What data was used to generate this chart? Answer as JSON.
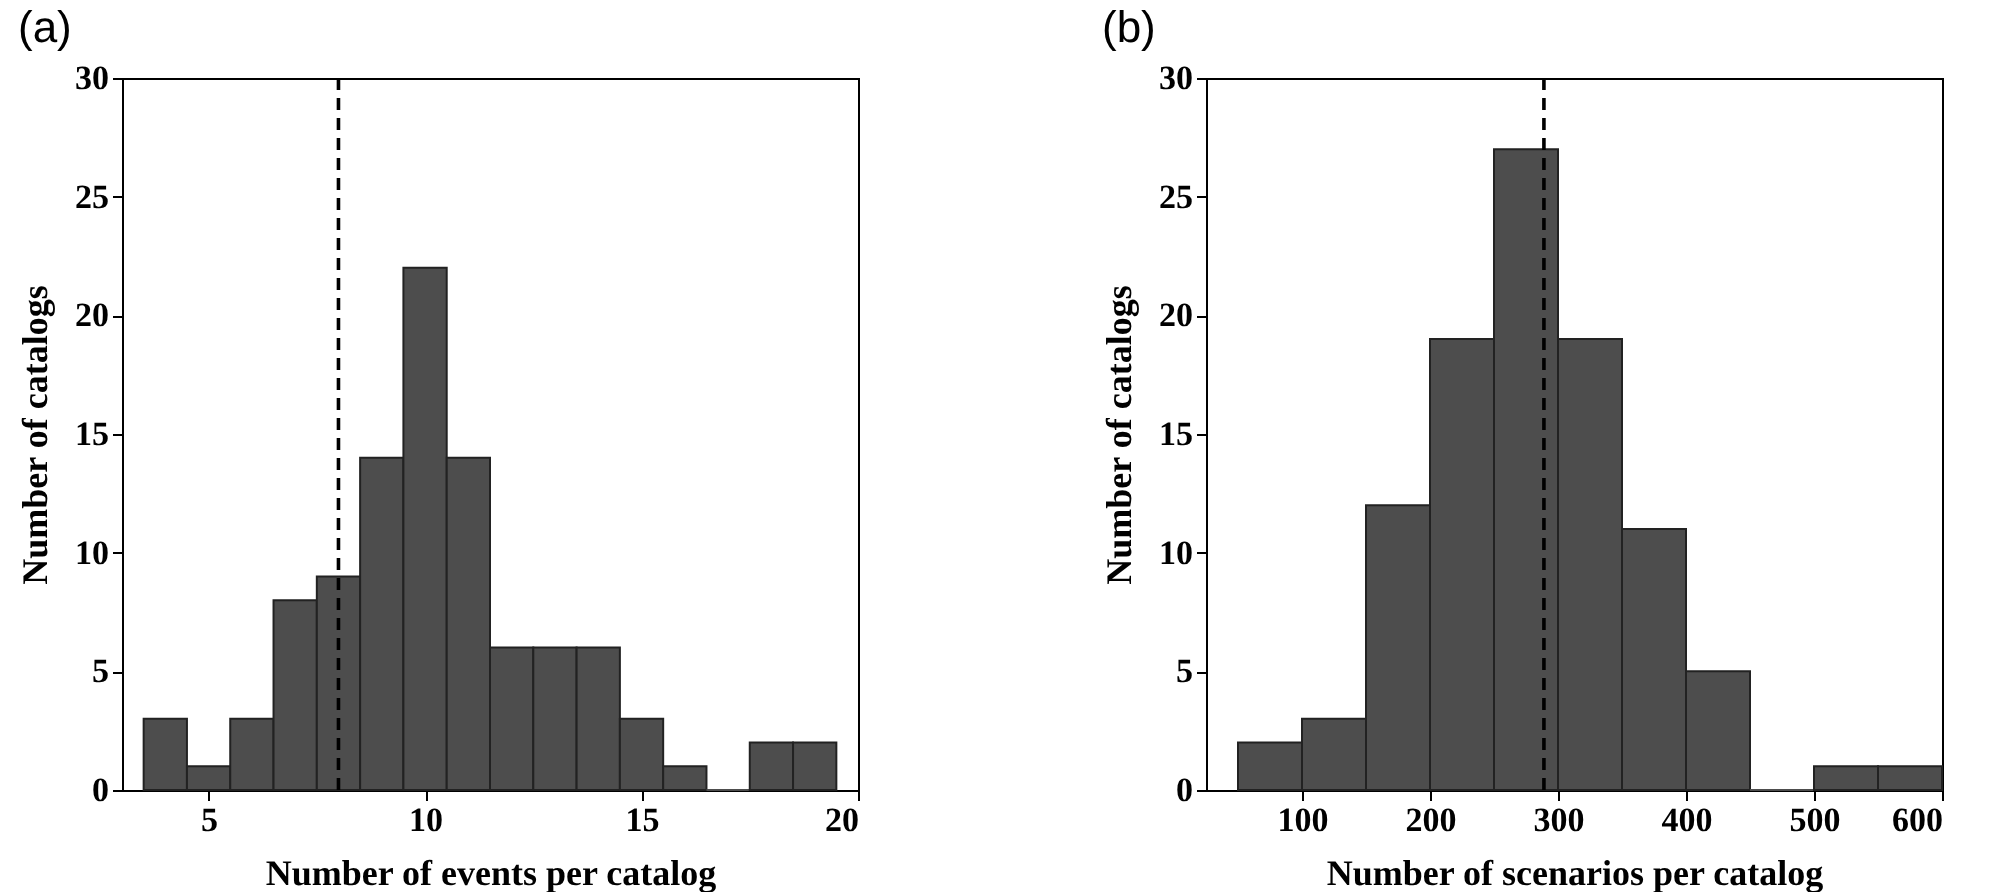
{
  "chart_data": [
    {
      "type": "histogram",
      "title": "(a)",
      "xlabel": "Number of events per catalog",
      "ylabel": "Number of catalogs",
      "color": "#4d4d4d",
      "bins": [
        3.5,
        4.5,
        5.5,
        6.5,
        7.5,
        8.5,
        9.5,
        10.5,
        11.5,
        12.5,
        13.5,
        14.5,
        15.5,
        16.5,
        17.5,
        18.5,
        19.5
      ],
      "values": [
        3,
        1,
        3,
        8,
        9,
        14,
        22,
        14,
        6,
        6,
        6,
        3,
        1,
        0,
        2,
        2
      ],
      "xlim": [
        3,
        20
      ],
      "xticks": [
        5,
        10,
        15,
        20
      ],
      "ylim": [
        0,
        30
      ],
      "yticks": [
        0,
        5,
        10,
        15,
        20,
        25,
        30
      ],
      "ref_lines": [
        {
          "axis": "x",
          "value": 8,
          "color": "#000000",
          "line_style": "dashed"
        }
      ]
    },
    {
      "type": "histogram",
      "title": "(b)",
      "xlabel": "Number of scenarios per catalog",
      "ylabel": "Number of catalogs",
      "color": "#4d4d4d",
      "bins": [
        50,
        100,
        150,
        200,
        250,
        300,
        350,
        400,
        450,
        500,
        550,
        600
      ],
      "values": [
        2,
        3,
        12,
        19,
        27,
        19,
        11,
        5,
        0,
        1,
        1
      ],
      "xlim": [
        25,
        600
      ],
      "xticks": [
        100,
        200,
        300,
        400,
        500,
        600
      ],
      "ylim": [
        0,
        30
      ],
      "yticks": [
        0,
        5,
        10,
        15,
        20,
        25,
        30
      ],
      "ref_lines": [
        {
          "axis": "x",
          "value": 289,
          "color": "#000000",
          "line_style": "dashed"
        }
      ]
    }
  ]
}
